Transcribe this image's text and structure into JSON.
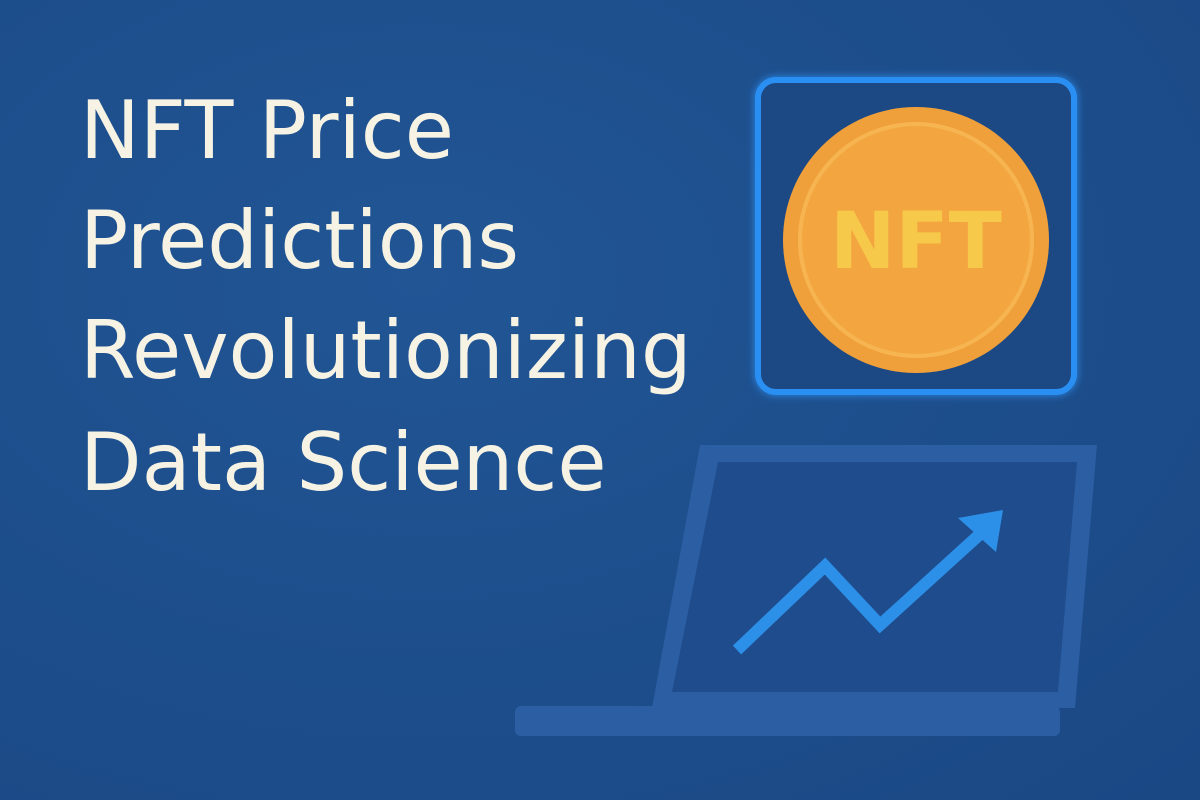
{
  "title": {
    "lines": [
      "NFT Price",
      "Predictions",
      "Revolutionizing",
      "Data Science"
    ]
  },
  "coin": {
    "label": "NFT"
  }
}
